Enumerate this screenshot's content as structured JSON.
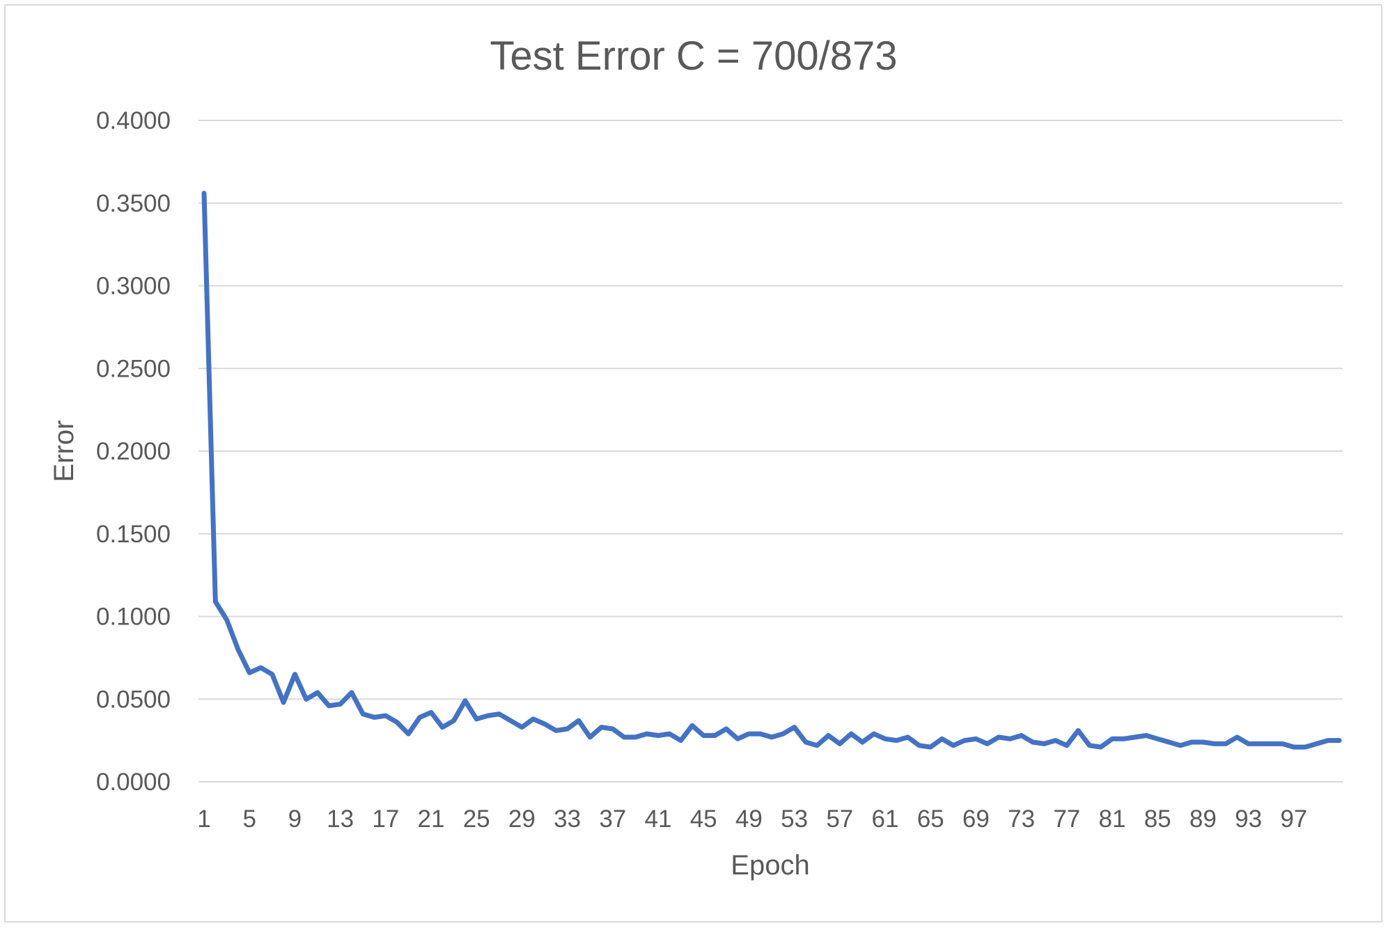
{
  "chart_data": {
    "type": "line",
    "title": "Test Error C = 700/873",
    "xlabel": "Epoch",
    "ylabel": "Error",
    "ylim": [
      0,
      0.4
    ],
    "yticks": [
      "0.0000",
      "0.0500",
      "0.1000",
      "0.1500",
      "0.2000",
      "0.2500",
      "0.3000",
      "0.3500",
      "0.4000"
    ],
    "xtick_labels": [
      "1",
      "5",
      "9",
      "13",
      "17",
      "21",
      "25",
      "29",
      "33",
      "37",
      "41",
      "45",
      "49",
      "53",
      "57",
      "61",
      "65",
      "69",
      "73",
      "77",
      "81",
      "85",
      "89",
      "93",
      "97"
    ],
    "grid": true,
    "legend": "none",
    "series_color": "#4472c4",
    "x": [
      1,
      2,
      3,
      4,
      5,
      6,
      7,
      8,
      9,
      10,
      11,
      12,
      13,
      14,
      15,
      16,
      17,
      18,
      19,
      20,
      21,
      22,
      23,
      24,
      25,
      26,
      27,
      28,
      29,
      30,
      31,
      32,
      33,
      34,
      35,
      36,
      37,
      38,
      39,
      40,
      41,
      42,
      43,
      44,
      45,
      46,
      47,
      48,
      49,
      50,
      51,
      52,
      53,
      54,
      55,
      56,
      57,
      58,
      59,
      60,
      61,
      62,
      63,
      64,
      65,
      66,
      67,
      68,
      69,
      70,
      71,
      72,
      73,
      74,
      75,
      76,
      77,
      78,
      79,
      80,
      81,
      82,
      83,
      84,
      85,
      86,
      87,
      88,
      89,
      90,
      91,
      92,
      93,
      94,
      95,
      96,
      97,
      98,
      99,
      100,
      101
    ],
    "series": [
      {
        "values": [
          0.356,
          0.109,
          0.098,
          0.08,
          0.066,
          0.069,
          0.065,
          0.048,
          0.065,
          0.05,
          0.054,
          0.046,
          0.047,
          0.054,
          0.041,
          0.039,
          0.04,
          0.036,
          0.029,
          0.039,
          0.042,
          0.033,
          0.037,
          0.049,
          0.038,
          0.04,
          0.041,
          0.037,
          0.033,
          0.038,
          0.035,
          0.031,
          0.032,
          0.037,
          0.027,
          0.033,
          0.032,
          0.027,
          0.027,
          0.029,
          0.028,
          0.029,
          0.025,
          0.034,
          0.028,
          0.028,
          0.032,
          0.026,
          0.029,
          0.029,
          0.027,
          0.029,
          0.033,
          0.024,
          0.022,
          0.028,
          0.023,
          0.029,
          0.024,
          0.029,
          0.026,
          0.025,
          0.027,
          0.022,
          0.021,
          0.026,
          0.022,
          0.025,
          0.026,
          0.023,
          0.027,
          0.026,
          0.028,
          0.024,
          0.023,
          0.025,
          0.022,
          0.031,
          0.022,
          0.021,
          0.026,
          0.026,
          0.027,
          0.028,
          0.026,
          0.024,
          0.022,
          0.024,
          0.024,
          0.023,
          0.023,
          0.027,
          0.023,
          0.023,
          0.023,
          0.023,
          0.021,
          0.021,
          0.023,
          0.025,
          0.025
        ]
      }
    ]
  }
}
